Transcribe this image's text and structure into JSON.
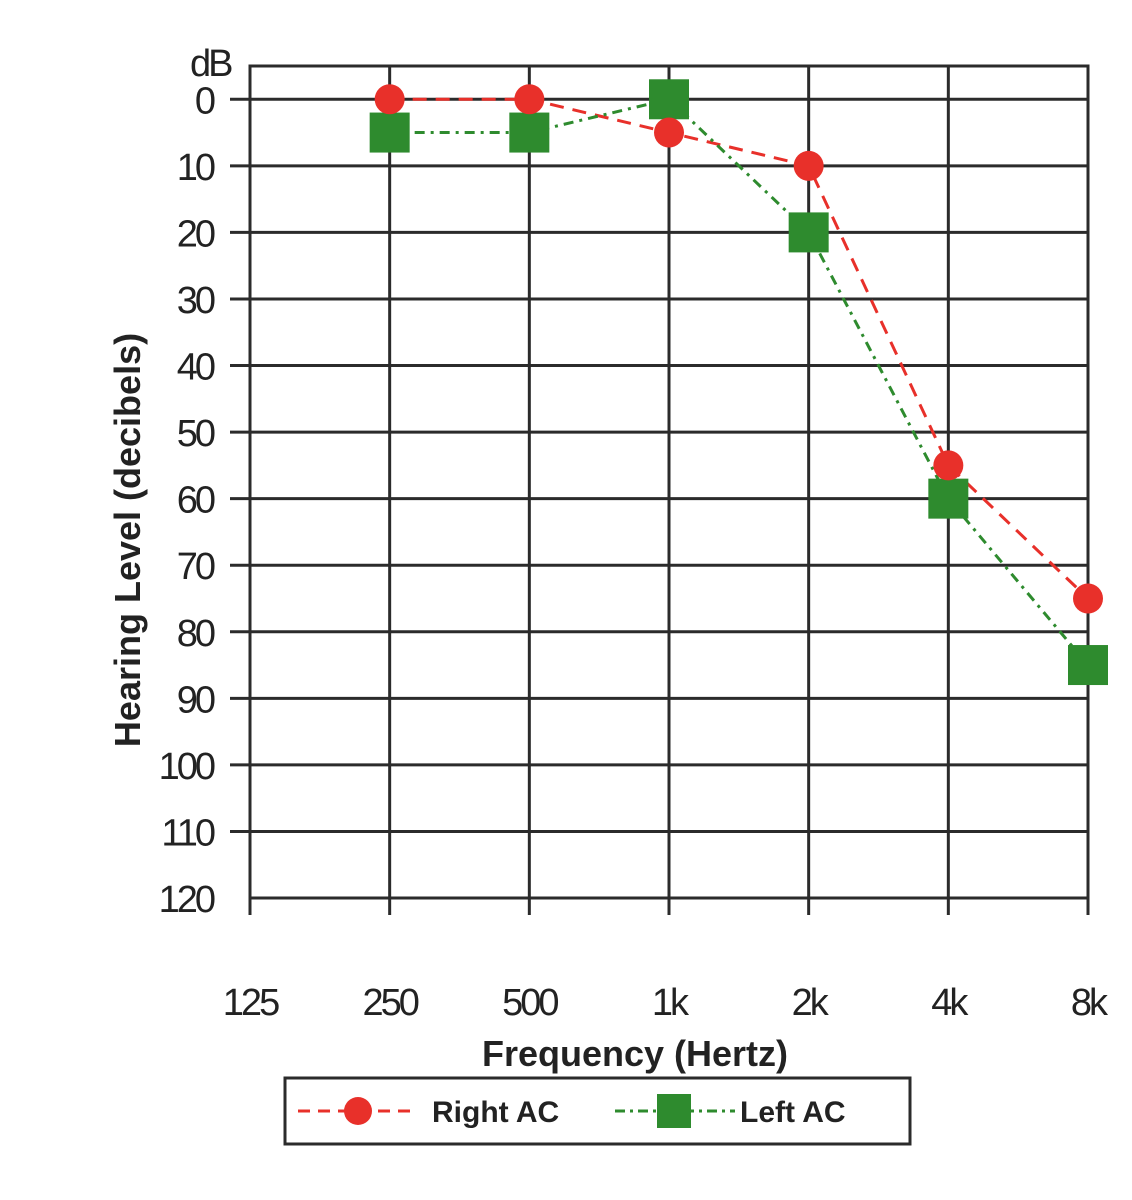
{
  "chart_data": {
    "type": "line",
    "title": "",
    "xlabel": "Frequency (Hertz)",
    "ylabel": "Hearing Level (decibels)",
    "y_unit_label": "dB",
    "categories": [
      "125",
      "250",
      "500",
      "1k",
      "2k",
      "4k",
      "8k"
    ],
    "yticks": [
      "0",
      "10",
      "20",
      "30",
      "40",
      "50",
      "60",
      "70",
      "80",
      "90",
      "100",
      "110",
      "120"
    ],
    "ylim": [
      -5,
      120
    ],
    "y_inverted": true,
    "grid": true,
    "legend_position": "bottom",
    "series": [
      {
        "name": "Right AC",
        "color": "#e8302a",
        "marker": "circle",
        "line_style": "dashed",
        "points": [
          {
            "x": "250",
            "y": 0
          },
          {
            "x": "500",
            "y": 0
          },
          {
            "x": "1k",
            "y": 5
          },
          {
            "x": "2k",
            "y": 10
          },
          {
            "x": "4k",
            "y": 55
          },
          {
            "x": "8k",
            "y": 75
          }
        ]
      },
      {
        "name": "Left AC",
        "color": "#2e8b2e",
        "marker": "square",
        "line_style": "dash-dot",
        "points": [
          {
            "x": "250",
            "y": 5
          },
          {
            "x": "500",
            "y": 5
          },
          {
            "x": "1k",
            "y": 0
          },
          {
            "x": "2k",
            "y": 20
          },
          {
            "x": "4k",
            "y": 60
          },
          {
            "x": "8k",
            "y": 85
          }
        ]
      }
    ]
  }
}
